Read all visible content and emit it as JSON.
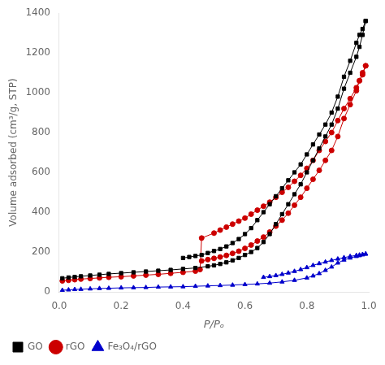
{
  "chart_data": {
    "type": "line",
    "xlabel": "P/Pₒ",
    "ylabel": "Volume adsorbed (cm³/g, STP)",
    "xlim": [
      0.0,
      1.0
    ],
    "ylim": [
      0,
      1400
    ],
    "xticks": [
      {
        "value": 0.0,
        "label": "0.0"
      },
      0.2,
      0.4,
      0.6,
      0.8,
      {
        "value": 1.0,
        "label": "1.0"
      }
    ],
    "yticks": [
      0,
      200,
      400,
      600,
      800,
      1000,
      1200,
      1400
    ],
    "grid": false,
    "legend": "bottom",
    "series": [
      {
        "name": "GO",
        "color": "#000000",
        "marker": "square",
        "x": [
          0.01,
          0.03,
          0.05,
          0.07,
          0.1,
          0.13,
          0.16,
          0.2,
          0.24,
          0.28,
          0.32,
          0.36,
          0.4,
          0.44,
          0.48,
          0.5,
          0.52,
          0.54,
          0.56,
          0.58,
          0.6,
          0.62,
          0.64,
          0.66,
          0.68,
          0.7,
          0.72,
          0.74,
          0.76,
          0.78,
          0.8,
          0.82,
          0.84,
          0.86,
          0.88,
          0.9,
          0.92,
          0.94,
          0.96,
          0.97,
          0.98,
          0.99
        ],
        "values": [
          68,
          72,
          75,
          78,
          82,
          86,
          90,
          94,
          98,
          102,
          106,
          110,
          115,
          120,
          128,
          133,
          140,
          148,
          158,
          170,
          185,
          200,
          220,
          250,
          290,
          340,
          390,
          440,
          490,
          540,
          600,
          660,
          720,
          780,
          840,
          920,
          1020,
          1100,
          1180,
          1230,
          1290,
          1360
        ]
      },
      {
        "color": "#000000",
        "marker": "square",
        "x": [
          0.99,
          0.98,
          0.97,
          0.96,
          0.94,
          0.92,
          0.9,
          0.88,
          0.86,
          0.84,
          0.82,
          0.8,
          0.78,
          0.76,
          0.74,
          0.72,
          0.7,
          0.68,
          0.66,
          0.64,
          0.62,
          0.6,
          0.58,
          0.56,
          0.54,
          0.52,
          0.5,
          0.48,
          0.46,
          0.44,
          0.42,
          0.4
        ],
        "values": [
          1360,
          1320,
          1290,
          1250,
          1160,
          1080,
          980,
          900,
          840,
          790,
          740,
          690,
          640,
          600,
          560,
          520,
          480,
          440,
          400,
          360,
          320,
          290,
          265,
          245,
          228,
          215,
          205,
          195,
          185,
          180,
          175,
          170
        ]
      },
      {
        "name": "rGO",
        "color": "#cc0000",
        "marker": "circle",
        "x": [
          0.01,
          0.03,
          0.05,
          0.07,
          0.1,
          0.13,
          0.16,
          0.2,
          0.24,
          0.28,
          0.32,
          0.36,
          0.4,
          0.44,
          0.455,
          0.46,
          0.5,
          0.52,
          0.54,
          0.56,
          0.58,
          0.6,
          0.62,
          0.64,
          0.66,
          0.68,
          0.7,
          0.72,
          0.74,
          0.76,
          0.78,
          0.8,
          0.82,
          0.84,
          0.86,
          0.88,
          0.9,
          0.92,
          0.94,
          0.96,
          0.97,
          0.98,
          0.99
        ],
        "values": [
          55,
          58,
          61,
          64,
          67,
          70,
          73,
          76,
          80,
          84,
          88,
          93,
          98,
          104,
          112,
          270,
          295,
          310,
          325,
          340,
          355,
          370,
          390,
          410,
          430,
          450,
          475,
          500,
          525,
          555,
          585,
          620,
          660,
          710,
          755,
          800,
          860,
          920,
          970,
          1025,
          1060,
          1090,
          1135
        ]
      },
      {
        "color": "#cc0000",
        "marker": "circle",
        "x": [
          0.99,
          0.98,
          0.97,
          0.96,
          0.94,
          0.92,
          0.9,
          0.88,
          0.86,
          0.84,
          0.82,
          0.8,
          0.78,
          0.76,
          0.74,
          0.72,
          0.7,
          0.68,
          0.66,
          0.64,
          0.62,
          0.6,
          0.58,
          0.56,
          0.54,
          0.52,
          0.5,
          0.48,
          0.46
        ],
        "values": [
          1135,
          1100,
          1060,
          1010,
          940,
          870,
          780,
          710,
          660,
          610,
          565,
          520,
          475,
          435,
          395,
          360,
          330,
          300,
          275,
          255,
          235,
          218,
          204,
          193,
          183,
          175,
          168,
          162,
          155
        ]
      },
      {
        "name": "Fe₃O₄/rGO",
        "color": "#0000cc",
        "marker": "triangle",
        "x": [
          0.01,
          0.03,
          0.05,
          0.07,
          0.1,
          0.13,
          0.16,
          0.2,
          0.24,
          0.28,
          0.32,
          0.36,
          0.4,
          0.44,
          0.48,
          0.52,
          0.56,
          0.6,
          0.64,
          0.68,
          0.72,
          0.76,
          0.8,
          0.82,
          0.84,
          0.86,
          0.88,
          0.9,
          0.92,
          0.94,
          0.96,
          0.97,
          0.98,
          0.99
        ],
        "values": [
          8,
          10,
          12,
          13,
          15,
          17,
          18,
          20,
          21,
          22,
          24,
          25,
          26,
          28,
          30,
          32,
          34,
          37,
          40,
          44,
          50,
          58,
          70,
          80,
          92,
          108,
          125,
          145,
          160,
          170,
          178,
          182,
          186,
          190
        ]
      },
      {
        "color": "#0000cc",
        "marker": "triangle",
        "x": [
          0.99,
          0.98,
          0.97,
          0.96,
          0.94,
          0.92,
          0.9,
          0.88,
          0.86,
          0.84,
          0.82,
          0.8,
          0.78,
          0.76,
          0.74,
          0.72,
          0.7,
          0.68,
          0.66
        ],
        "values": [
          190,
          188,
          185,
          183,
          178,
          172,
          165,
          158,
          150,
          142,
          133,
          122,
          112,
          103,
          95,
          88,
          82,
          77,
          73
        ]
      }
    ]
  }
}
